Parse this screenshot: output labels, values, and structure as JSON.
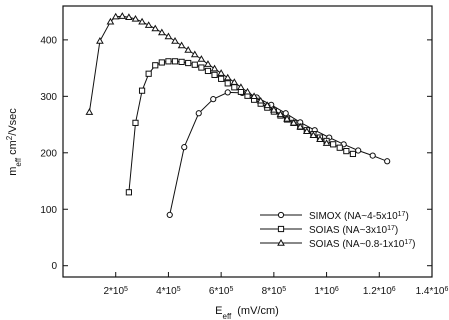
{
  "chart_data": {
    "type": "line",
    "xlabel": "E",
    "xlabel_sub": "eff",
    "xlabel_unit": "(mV/cm)",
    "ylabel": "m",
    "ylabel_sub": "eff",
    "ylabel_unit": "cm",
    "ylabel_unit_sup": "2",
    "ylabel_unit_tail": "/Vsec",
    "xlim": [
      0,
      1400000
    ],
    "ylim": [
      -20,
      460
    ],
    "x_ticks": [
      {
        "value": 200000,
        "mant": "2*10",
        "exp": "5"
      },
      {
        "value": 400000,
        "mant": "4*10",
        "exp": "5"
      },
      {
        "value": 600000,
        "mant": "6*10",
        "exp": "5"
      },
      {
        "value": 800000,
        "mant": "8*10",
        "exp": "5"
      },
      {
        "value": 1000000,
        "mant": "1*10",
        "exp": "6"
      },
      {
        "value": 1200000,
        "mant": "1.2*10",
        "exp": "6"
      },
      {
        "value": 1400000,
        "mant": "1.4*10",
        "exp": "6"
      }
    ],
    "y_ticks": [
      {
        "value": 0,
        "label": "0"
      },
      {
        "value": 100,
        "label": "100"
      },
      {
        "value": 200,
        "label": "200"
      },
      {
        "value": 300,
        "label": "300"
      },
      {
        "value": 400,
        "label": "400"
      }
    ],
    "legend_position": "bottom-right",
    "series": [
      {
        "name": "SIMOX (NA~4-5x10",
        "name_sup": "17",
        "name_tail": ")",
        "marker": "circle",
        "x": [
          405000,
          460000,
          515000,
          570000,
          625000,
          680000,
          735000,
          790000,
          845000,
          900000,
          955000,
          1010000,
          1065000,
          1120000,
          1175000,
          1230000
        ],
        "y": [
          90,
          210,
          270,
          295,
          307,
          306,
          298,
          285,
          270,
          254,
          240,
          227,
          215,
          204,
          195,
          185
        ]
      },
      {
        "name": "SOIAS (NA~3x10",
        "name_sup": "17",
        "name_tail": ")",
        "marker": "square",
        "x": [
          250000,
          275000,
          300000,
          325000,
          350000,
          375000,
          400000,
          425000,
          450000,
          475000,
          500000,
          525000,
          550000,
          575000,
          600000,
          625000,
          650000,
          675000,
          700000,
          725000,
          750000,
          775000,
          800000,
          825000,
          850000,
          875000,
          900000,
          925000,
          950000,
          975000,
          1000000,
          1025000,
          1050000,
          1075000,
          1100000
        ],
        "y": [
          130,
          253,
          310,
          340,
          355,
          360,
          362,
          362,
          361,
          359,
          356,
          351,
          345,
          338,
          331,
          323,
          316,
          308,
          301,
          294,
          287,
          280,
          273,
          266,
          259,
          253,
          246,
          240,
          233,
          227,
          221,
          215,
          209,
          203,
          198
        ]
      },
      {
        "name": "SOIAS (NA~0.8-1x10",
        "name_sup": "17",
        "name_tail": ")",
        "marker": "triangle",
        "x": [
          100000,
          140000,
          180000,
          200000,
          225000,
          250000,
          275000,
          300000,
          325000,
          350000,
          375000,
          400000,
          425000,
          450000,
          475000,
          500000,
          525000,
          550000,
          575000,
          600000,
          625000,
          650000,
          675000,
          700000,
          725000,
          750000,
          775000,
          800000,
          825000,
          850000,
          875000,
          900000,
          925000,
          950000,
          975000,
          1000000
        ],
        "y": [
          272,
          398,
          432,
          441,
          442,
          440,
          437,
          432,
          426,
          420,
          413,
          406,
          398,
          390,
          382,
          374,
          366,
          357,
          349,
          341,
          333,
          325,
          316,
          308,
          300,
          292,
          284,
          276,
          268,
          260,
          253,
          246,
          238,
          231,
          224,
          217
        ]
      }
    ]
  }
}
